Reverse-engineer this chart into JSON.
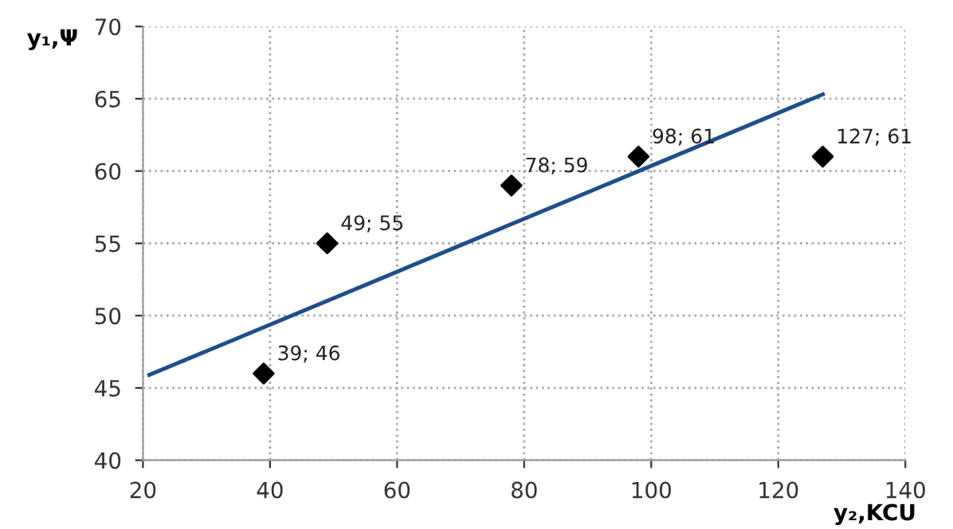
{
  "chart_data": {
    "type": "scatter",
    "xlabel": "y₂,KCU",
    "ylabel": "y₁,Ψ",
    "xlim": [
      20,
      140
    ],
    "xticks": [
      20,
      40,
      60,
      80,
      100,
      120,
      140
    ],
    "ylim": [
      40,
      70
    ],
    "yticks": [
      40,
      45,
      50,
      55,
      60,
      65,
      70
    ],
    "grid": true,
    "legend": false,
    "marker": "diamond",
    "series": [
      {
        "color": "#000000",
        "x": [
          39,
          49,
          78,
          98,
          127
        ],
        "values": [
          46,
          55,
          59,
          61,
          61
        ],
        "value_labels": [
          "39; 46",
          "49; 55",
          "78; 59",
          "98; 61",
          "127; 61"
        ]
      },
      {
        "type": "line",
        "color": "#1f4e8c",
        "x": [
          21,
          127
        ],
        "values": [
          45.9,
          65.3
        ],
        "marker": "none",
        "line_style": "solid"
      }
    ]
  }
}
